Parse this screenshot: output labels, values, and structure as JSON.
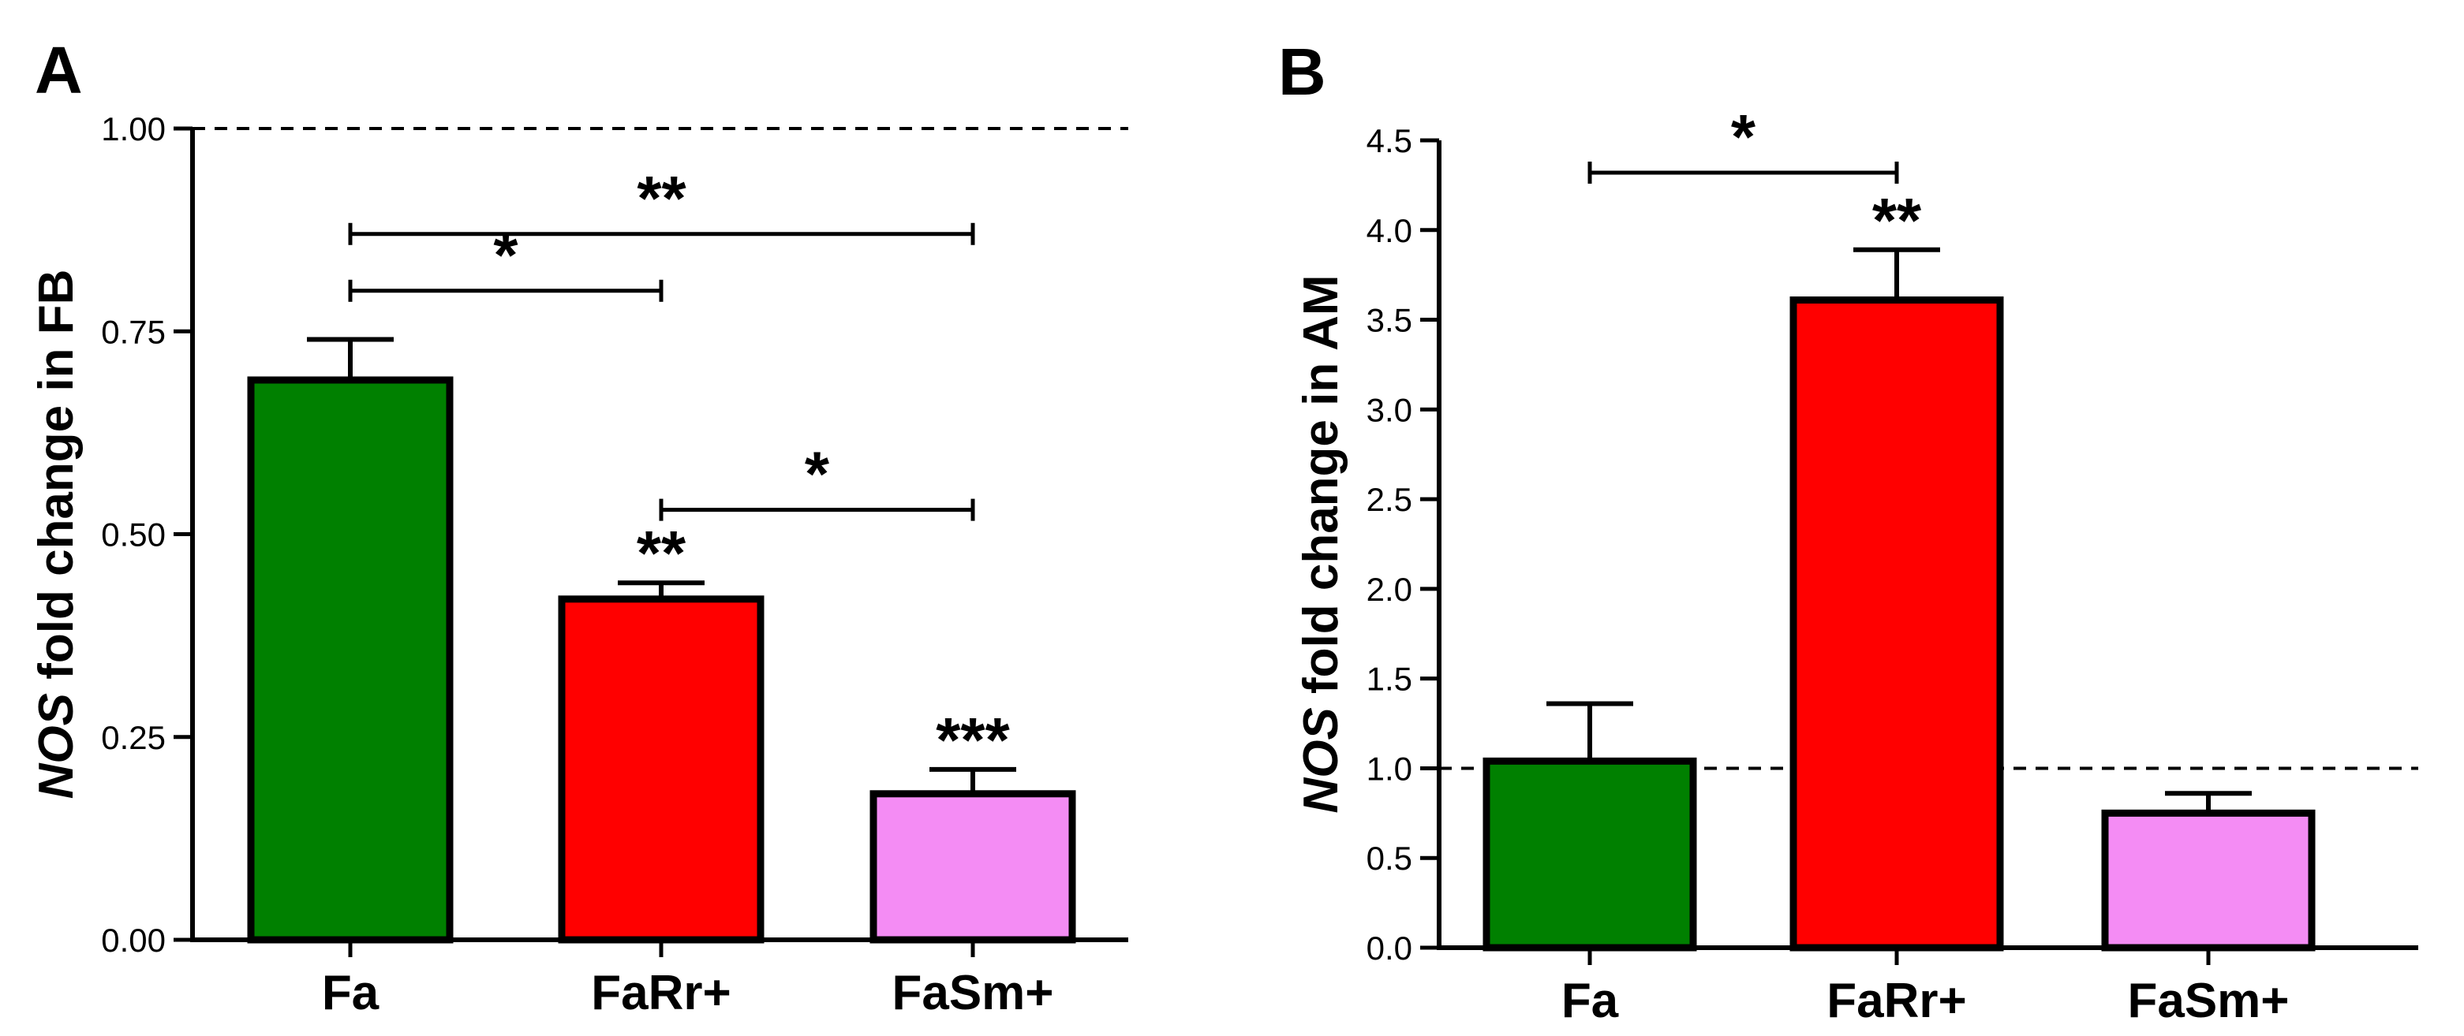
{
  "chart_data": [
    {
      "type": "bar",
      "panel": "A",
      "title": "",
      "xlabel": "",
      "ylabel_italic": "NOS",
      "ylabel_rest": " fold change in FB",
      "categories": [
        "Fa",
        "FaRr+",
        "FaSm+"
      ],
      "values": [
        0.69,
        0.42,
        0.18
      ],
      "errors": [
        0.05,
        0.02,
        0.03
      ],
      "colors": [
        "#008000",
        "#ff0000",
        "#f48cf4"
      ],
      "ylim": [
        0,
        1.0
      ],
      "yticks": [
        0,
        0.25,
        0.5,
        0.75,
        1.0
      ],
      "ytick_labels": [
        "0.00",
        "0.25",
        "0.50",
        "0.75",
        "1.00"
      ],
      "reference_line": 1.0,
      "bar_stars": [
        "",
        "**",
        "***"
      ],
      "comparisons": [
        {
          "from": 0,
          "to": 1,
          "y": 0.8,
          "label": "*"
        },
        {
          "from": 0,
          "to": 2,
          "y": 0.87,
          "label": "**"
        },
        {
          "from": 1,
          "to": 2,
          "y": 0.53,
          "label": "*"
        }
      ]
    },
    {
      "type": "bar",
      "panel": "B",
      "title": "",
      "xlabel": "",
      "ylabel_italic": "NOS",
      "ylabel_rest": " fold change in AM",
      "categories": [
        "Fa",
        "FaRr+",
        "FaSm+"
      ],
      "values": [
        1.04,
        3.61,
        0.75
      ],
      "errors": [
        0.32,
        0.28,
        0.11
      ],
      "colors": [
        "#008000",
        "#ff0000",
        "#f48cf4"
      ],
      "ylim": [
        0,
        4.5
      ],
      "yticks": [
        0,
        0.5,
        1.0,
        1.5,
        2.0,
        2.5,
        3.0,
        3.5,
        4.0,
        4.5
      ],
      "ytick_labels": [
        "0.0",
        "0.5",
        "1.0",
        "1.5",
        "2.0",
        "2.5",
        "3.0",
        "3.5",
        "4.0",
        "4.5"
      ],
      "reference_line": 1.0,
      "bar_stars": [
        "",
        "**",
        ""
      ],
      "comparisons": [
        {
          "from": 0,
          "to": 1,
          "y": 4.32,
          "label": "*"
        }
      ]
    }
  ]
}
